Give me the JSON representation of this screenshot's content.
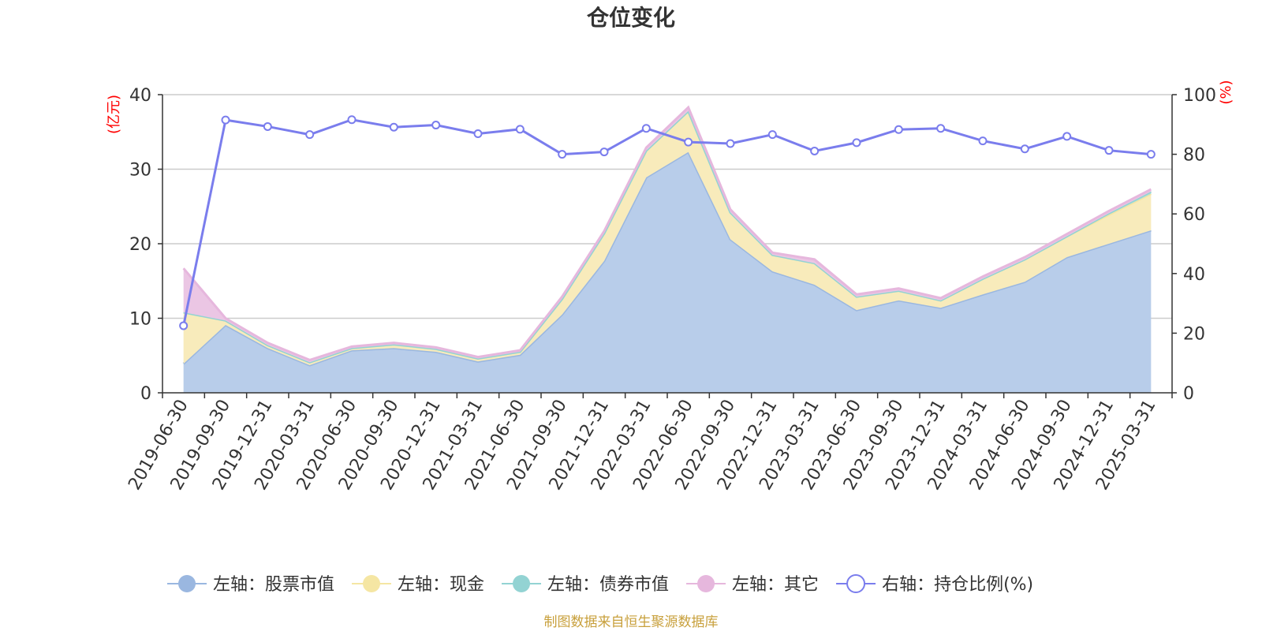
{
  "chart_data": {
    "type": "area",
    "title": "仓位变化",
    "left_axis_unit": "(亿元)",
    "right_axis_unit": "(%)",
    "left_axis": {
      "min": 0,
      "max": 40,
      "ticks": [
        "0",
        "10",
        "20",
        "30",
        "40"
      ]
    },
    "right_axis": {
      "min": 0,
      "max": 100,
      "ticks": [
        "0",
        "20",
        "40",
        "60",
        "80",
        "100"
      ]
    },
    "grid": true,
    "legend_position": "bottom",
    "categories": [
      "2019-06-30",
      "2019-09-30",
      "2019-12-31",
      "2020-03-31",
      "2020-06-30",
      "2020-09-30",
      "2020-12-31",
      "2021-03-31",
      "2021-06-30",
      "2021-09-30",
      "2021-12-31",
      "2022-03-31",
      "2022-06-30",
      "2022-09-30",
      "2022-12-31",
      "2023-03-31",
      "2023-06-30",
      "2023-09-30",
      "2023-12-31",
      "2024-03-31",
      "2024-06-30",
      "2024-09-30",
      "2024-12-31",
      "2025-03-31"
    ],
    "series": [
      {
        "name": "左轴：股票市值",
        "axis": "left",
        "kind": "stacked-area",
        "color": "#9ab7e0",
        "fill": "#b8cdea",
        "values": [
          3.9,
          9.1,
          6.0,
          3.7,
          5.7,
          6.0,
          5.5,
          4.2,
          5.1,
          10.5,
          17.7,
          28.9,
          32.3,
          20.6,
          16.3,
          14.5,
          11.1,
          12.4,
          11.4,
          13.2,
          14.9,
          18.2,
          20.0,
          21.8
        ]
      },
      {
        "name": "左轴：现金",
        "axis": "left",
        "kind": "stacked-area",
        "color": "#f5e6a3",
        "fill": "#f8ebbb",
        "values": [
          6.9,
          0.6,
          0.4,
          0.4,
          0.3,
          0.5,
          0.4,
          0.4,
          0.4,
          2.1,
          3.7,
          3.6,
          5.5,
          3.6,
          2.2,
          2.9,
          1.8,
          1.3,
          1.0,
          2.1,
          3.0,
          2.8,
          3.9,
          4.9
        ]
      },
      {
        "name": "左轴：债券市值",
        "axis": "left",
        "kind": "stacked-area",
        "color": "#93d3d3",
        "fill": "#a9dcdc",
        "values": [
          0,
          0,
          0,
          0,
          0,
          0,
          0,
          0,
          0,
          0,
          0,
          0,
          0,
          0,
          0,
          0,
          0,
          0,
          0,
          0,
          0,
          0,
          0.2,
          0.3
        ]
      },
      {
        "name": "左轴：其它",
        "axis": "left",
        "kind": "stacked-area",
        "color": "#e6b7dd",
        "fill": "#ebc6e4",
        "values": [
          5.9,
          0.3,
          0.3,
          0.3,
          0.2,
          0.2,
          0.2,
          0.2,
          0.2,
          0.3,
          0.3,
          0.4,
          0.5,
          0.4,
          0.3,
          0.5,
          0.3,
          0.3,
          0.3,
          0.3,
          0.3,
          0.3,
          0.3,
          0.3
        ]
      },
      {
        "name": "右轴：持仓比例(%)",
        "axis": "right",
        "kind": "line",
        "color": "#7a7ded",
        "values": [
          22.5,
          91.5,
          89.3,
          86.6,
          91.6,
          89.1,
          89.8,
          86.9,
          88.4,
          80.0,
          80.8,
          88.7,
          84.1,
          83.6,
          86.6,
          81.1,
          83.9,
          88.3,
          88.7,
          84.5,
          81.8,
          86.0,
          81.3,
          80.0
        ]
      }
    ],
    "source_note": "制图数据来自恒生聚源数据库"
  }
}
